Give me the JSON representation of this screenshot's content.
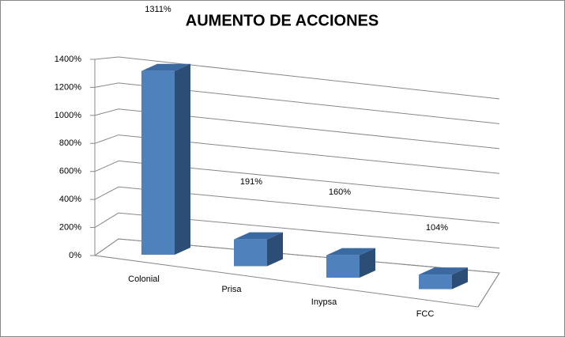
{
  "chart_data": {
    "type": "bar3d",
    "title": "AUMENTO DE ACCIONES",
    "categories": [
      "Colonial",
      "Prisa",
      "Inypsa",
      "FCC"
    ],
    "values": [
      1311,
      191,
      160,
      104
    ],
    "value_labels": [
      "1311%",
      "191%",
      "160%",
      "104%"
    ],
    "color": "#4f81bd",
    "ylim": [
      0,
      1400
    ],
    "yticks": [
      {
        "value": 0,
        "label": "0%"
      },
      {
        "value": 200,
        "label": "200%"
      },
      {
        "value": 400,
        "label": "400%"
      },
      {
        "value": 600,
        "label": "600%"
      },
      {
        "value": 800,
        "label": "800%"
      },
      {
        "value": 1000,
        "label": "1000%"
      },
      {
        "value": 1200,
        "label": "1200%"
      },
      {
        "value": 1400,
        "label": "1400%"
      }
    ],
    "grid": true
  }
}
